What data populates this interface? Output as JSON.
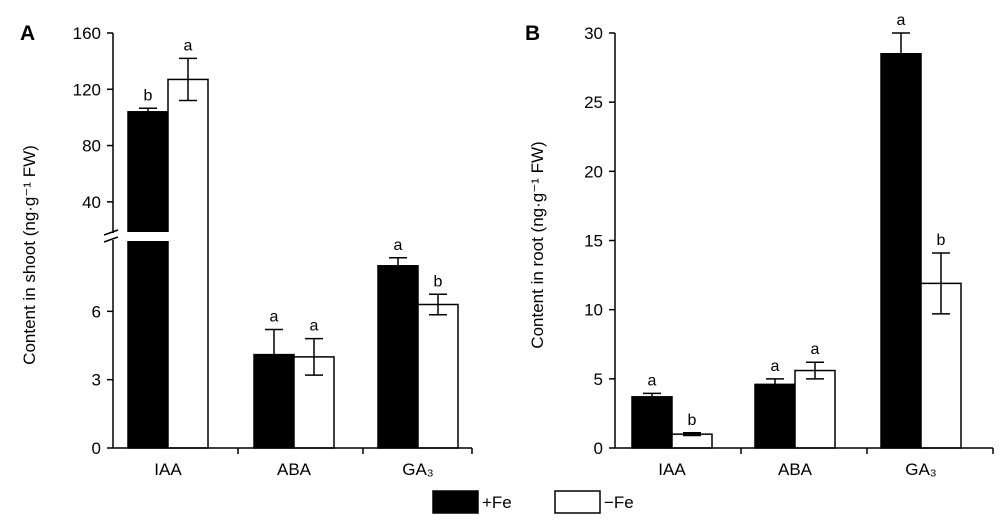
{
  "figure": {
    "legend": [
      {
        "label": "+Fe",
        "color": "#000000"
      },
      {
        "label": "−Fe",
        "color": "#ffffff"
      }
    ]
  },
  "chart_data": [
    {
      "panel": "A",
      "type": "bar",
      "ylabel": "Content in shoot (ng·g⁻¹ FW)",
      "categories": [
        "IAA",
        "ABA",
        "GA₃"
      ],
      "axis_break": true,
      "ylim_lower": [
        0,
        9
      ],
      "ylim_upper": [
        20,
        160
      ],
      "yticks_lower": [
        0,
        3,
        6
      ],
      "yticks_upper": [
        40,
        80,
        120,
        160
      ],
      "series": [
        {
          "name": "+Fe",
          "color": "#000000",
          "values": [
            104,
            4.1,
            8.0
          ],
          "errors": [
            2.5,
            1.1,
            0.35
          ],
          "letters": [
            "b",
            "a",
            "a"
          ]
        },
        {
          "name": "−Fe",
          "color": "#ffffff",
          "values": [
            127,
            4.0,
            6.3
          ],
          "errors": [
            15,
            0.8,
            0.45
          ],
          "letters": [
            "a",
            "a",
            "b"
          ]
        }
      ]
    },
    {
      "panel": "B",
      "type": "bar",
      "ylabel": "Content in root (ng·g⁻¹ FW)",
      "categories": [
        "IAA",
        "ABA",
        "GA₃"
      ],
      "ylim": [
        0,
        30
      ],
      "yticks": [
        0,
        5,
        10,
        15,
        20,
        25,
        30
      ],
      "series": [
        {
          "name": "+Fe",
          "color": "#000000",
          "values": [
            3.7,
            4.6,
            28.5
          ],
          "errors": [
            0.25,
            0.4,
            1.5
          ],
          "letters": [
            "a",
            "a",
            "a"
          ]
        },
        {
          "name": "−Fe",
          "color": "#ffffff",
          "values": [
            1.0,
            5.6,
            11.9
          ],
          "errors": [
            0.1,
            0.6,
            2.2
          ],
          "letters": [
            "b",
            "a",
            "b"
          ]
        }
      ]
    }
  ]
}
